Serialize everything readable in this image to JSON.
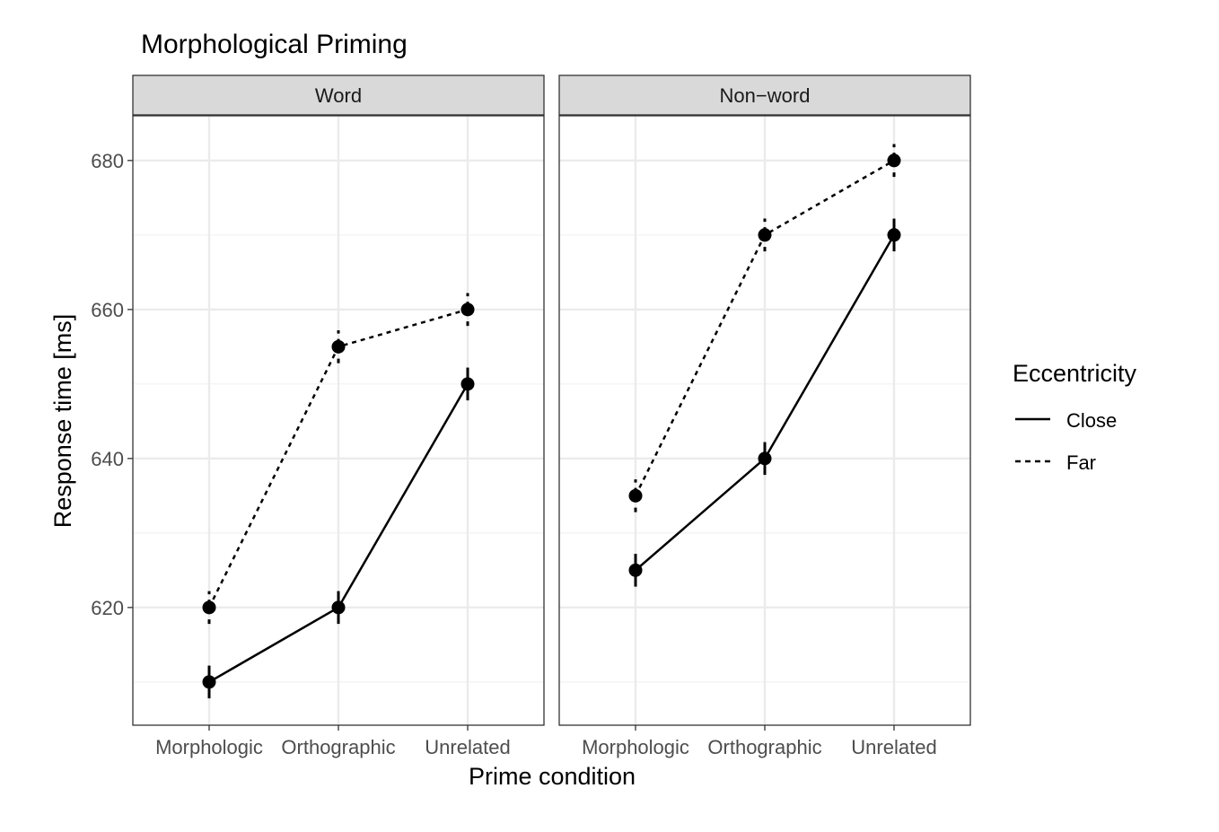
{
  "chart_data": {
    "type": "line",
    "title": "Morphological Priming",
    "xlabel": "Prime condition",
    "ylabel": "Response time [ms]",
    "categories": [
      "Morphologic",
      "Orthographic",
      "Unrelated"
    ],
    "yticks": [
      620,
      640,
      660,
      680
    ],
    "ylim": [
      604.2,
      686
    ],
    "grid": true,
    "legend": {
      "title": "Eccentricity",
      "position": "right",
      "entries": [
        "Close",
        "Far"
      ]
    },
    "panels": [
      {
        "label": "Word",
        "series": [
          {
            "name": "Close",
            "linetype": "solid",
            "values": [
              610,
              620,
              650
            ],
            "error": [
              2.2,
              2.2,
              2.2
            ]
          },
          {
            "name": "Far",
            "linetype": "dashed",
            "values": [
              620,
              655,
              660
            ],
            "error": [
              2.2,
              2.2,
              2.2
            ]
          }
        ]
      },
      {
        "label": "Non−word",
        "series": [
          {
            "name": "Close",
            "linetype": "solid",
            "values": [
              625,
              640,
              670
            ],
            "error": [
              2.2,
              2.2,
              2.2
            ]
          },
          {
            "name": "Far",
            "linetype": "dashed",
            "values": [
              635,
              670,
              680
            ],
            "error": [
              2.2,
              2.2,
              2.2
            ]
          }
        ]
      }
    ]
  }
}
